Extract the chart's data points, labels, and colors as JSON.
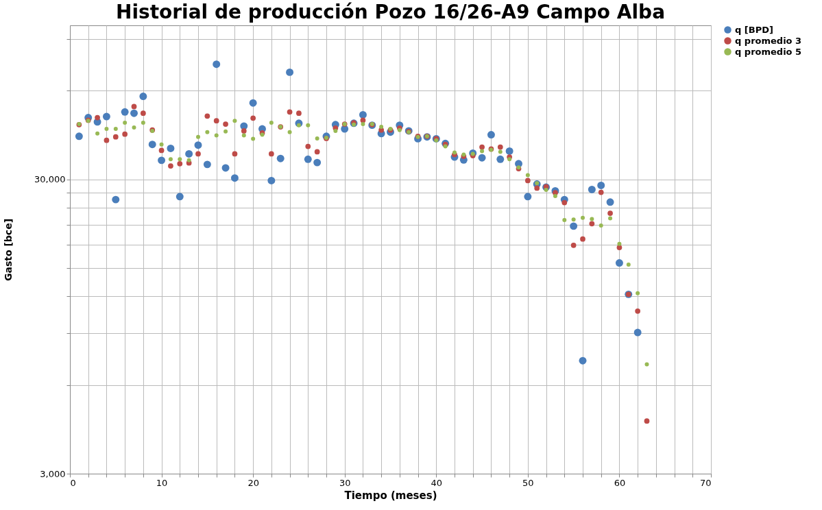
{
  "chart_data": {
    "type": "scatter",
    "title": "Historial de producción Pozo 16/26-A9  Campo Alba",
    "xlabel": "Tiempo (meses)",
    "ylabel": "Gasto [bce]",
    "xlim": [
      0,
      70
    ],
    "xticks": [
      0,
      {
        "value": 2,
        "label": null
      },
      {
        "value": 4,
        "label": null
      },
      {
        "value": 6,
        "label": null
      },
      {
        "value": 8,
        "label": null
      },
      10,
      {
        "value": 12,
        "label": null
      },
      {
        "value": 14,
        "label": null
      },
      {
        "value": 16,
        "label": null
      },
      {
        "value": 18,
        "label": null
      },
      20,
      {
        "value": 22,
        "label": null
      },
      {
        "value": 24,
        "label": null
      },
      {
        "value": 26,
        "label": null
      },
      {
        "value": 28,
        "label": null
      },
      30,
      {
        "value": 32,
        "label": null
      },
      {
        "value": 34,
        "label": null
      },
      {
        "value": 36,
        "label": null
      },
      {
        "value": 38,
        "label": null
      },
      40,
      {
        "value": 42,
        "label": null
      },
      {
        "value": 44,
        "label": null
      },
      {
        "value": 46,
        "label": null
      },
      {
        "value": 48,
        "label": null
      },
      50,
      {
        "value": 52,
        "label": null
      },
      {
        "value": 54,
        "label": null
      },
      {
        "value": 56,
        "label": null
      },
      {
        "value": 58,
        "label": null
      },
      60,
      {
        "value": 62,
        "label": null
      },
      {
        "value": 64,
        "label": null
      },
      {
        "value": 66,
        "label": null
      },
      {
        "value": 68,
        "label": null
      },
      70
    ],
    "ylim": [
      3000,
      100000
    ],
    "log": "y",
    "yticks": [
      {
        "value": 3000,
        "label": "3,000"
      },
      {
        "value": 6000,
        "label": null
      },
      {
        "value": 9000,
        "label": null
      },
      {
        "value": 12000,
        "label": null
      },
      {
        "value": 15000,
        "label": null
      },
      {
        "value": 18000,
        "label": null
      },
      {
        "value": 21000,
        "label": null
      },
      {
        "value": 24000,
        "label": null
      },
      {
        "value": 27000,
        "label": null
      },
      {
        "value": 30000,
        "label": "30,000"
      },
      {
        "value": 60000,
        "label": null
      },
      {
        "value": 90000,
        "label": null
      }
    ],
    "grid": true,
    "legend": "right",
    "marker": "circle",
    "series": [
      {
        "name": "q [BPD]",
        "color": "#4a7ebb",
        "x": [
          1,
          2,
          3,
          4,
          5,
          6,
          7,
          8,
          9,
          10,
          11,
          12,
          13,
          14,
          15,
          16,
          17,
          18,
          19,
          20,
          21,
          22,
          23,
          24,
          25,
          26,
          27,
          28,
          29,
          30,
          31,
          32,
          33,
          34,
          35,
          36,
          37,
          38,
          39,
          40,
          41,
          42,
          43,
          44,
          45,
          46,
          47,
          48,
          49,
          50,
          51,
          52,
          53,
          54,
          55,
          56,
          57,
          58,
          59,
          60,
          61,
          62
        ],
        "values": [
          42000,
          48600,
          47000,
          49000,
          25600,
          50800,
          50300,
          57400,
          39400,
          34800,
          38200,
          26200,
          36600,
          39200,
          33700,
          73800,
          32800,
          30300,
          45500,
          54500,
          44500,
          29700,
          35300,
          69300,
          46500,
          35100,
          34200,
          42000,
          46000,
          44500,
          46500,
          49700,
          45800,
          42900,
          43400,
          45800,
          43800,
          41200,
          41800,
          41200,
          39700,
          35700,
          34900,
          36800,
          35500,
          42500,
          35100,
          37400,
          33900,
          26200,
          28900,
          28200,
          27400,
          25600,
          20800,
          7260,
          27700,
          28600,
          25100,
          15600,
          12200,
          9050
        ]
      },
      {
        "name": "q promedio 3",
        "color": "#be4b48",
        "x": [
          1,
          2,
          3,
          4,
          5,
          6,
          7,
          8,
          9,
          10,
          11,
          12,
          13,
          14,
          15,
          16,
          17,
          18,
          19,
          20,
          21,
          22,
          23,
          24,
          25,
          26,
          27,
          28,
          29,
          30,
          31,
          32,
          33,
          34,
          35,
          36,
          37,
          38,
          39,
          40,
          41,
          42,
          43,
          44,
          45,
          46,
          47,
          48,
          49,
          50,
          51,
          52,
          53,
          54,
          55,
          56,
          57,
          58,
          59,
          60,
          61,
          62,
          63
        ],
        "values": [
          46000,
          47600,
          48600,
          40700,
          41800,
          42700,
          53000,
          50300,
          44100,
          37600,
          33300,
          33900,
          34100,
          36600,
          49200,
          47400,
          46200,
          36600,
          43800,
          48400,
          43100,
          36600,
          45200,
          50800,
          50300,
          38800,
          37200,
          41300,
          44800,
          46200,
          46700,
          47600,
          46000,
          44100,
          44100,
          44800,
          43600,
          42000,
          42000,
          41200,
          39400,
          36400,
          35900,
          36100,
          38600,
          38000,
          38600,
          35700,
          32600,
          29700,
          28000,
          28300,
          27000,
          25000,
          17900,
          18800,
          21200,
          27100,
          23000,
          17600,
          12200,
          10700,
          4530
        ]
      },
      {
        "name": "q promedio 5",
        "color": "#98b954",
        "x": [
          1,
          2,
          3,
          4,
          5,
          6,
          7,
          8,
          9,
          10,
          11,
          12,
          13,
          14,
          15,
          16,
          17,
          18,
          19,
          20,
          21,
          22,
          23,
          24,
          25,
          26,
          27,
          28,
          29,
          30,
          31,
          32,
          33,
          34,
          35,
          36,
          37,
          38,
          39,
          40,
          41,
          42,
          43,
          44,
          45,
          46,
          47,
          48,
          49,
          50,
          51,
          52,
          53,
          54,
          55,
          56,
          57,
          58,
          59,
          60,
          61,
          62,
          63
        ],
        "values": [
          46200,
          47400,
          42900,
          44500,
          44500,
          46700,
          45000,
          46700,
          43800,
          39400,
          35100,
          35100,
          34800,
          41800,
          43400,
          42300,
          43600,
          47400,
          42300,
          41200,
          42500,
          46700,
          45200,
          43400,
          45800,
          45800,
          41300,
          41500,
          43800,
          46200,
          46000,
          46200,
          46200,
          45200,
          44500,
          44100,
          43400,
          41800,
          42000,
          40700,
          38800,
          37000,
          36400,
          36600,
          37400,
          37800,
          37200,
          35100,
          32900,
          31000,
          29100,
          27600,
          26300,
          21800,
          21900,
          22200,
          22000,
          20900,
          22100,
          18100,
          15400,
          12300,
          7060
        ]
      }
    ]
  }
}
